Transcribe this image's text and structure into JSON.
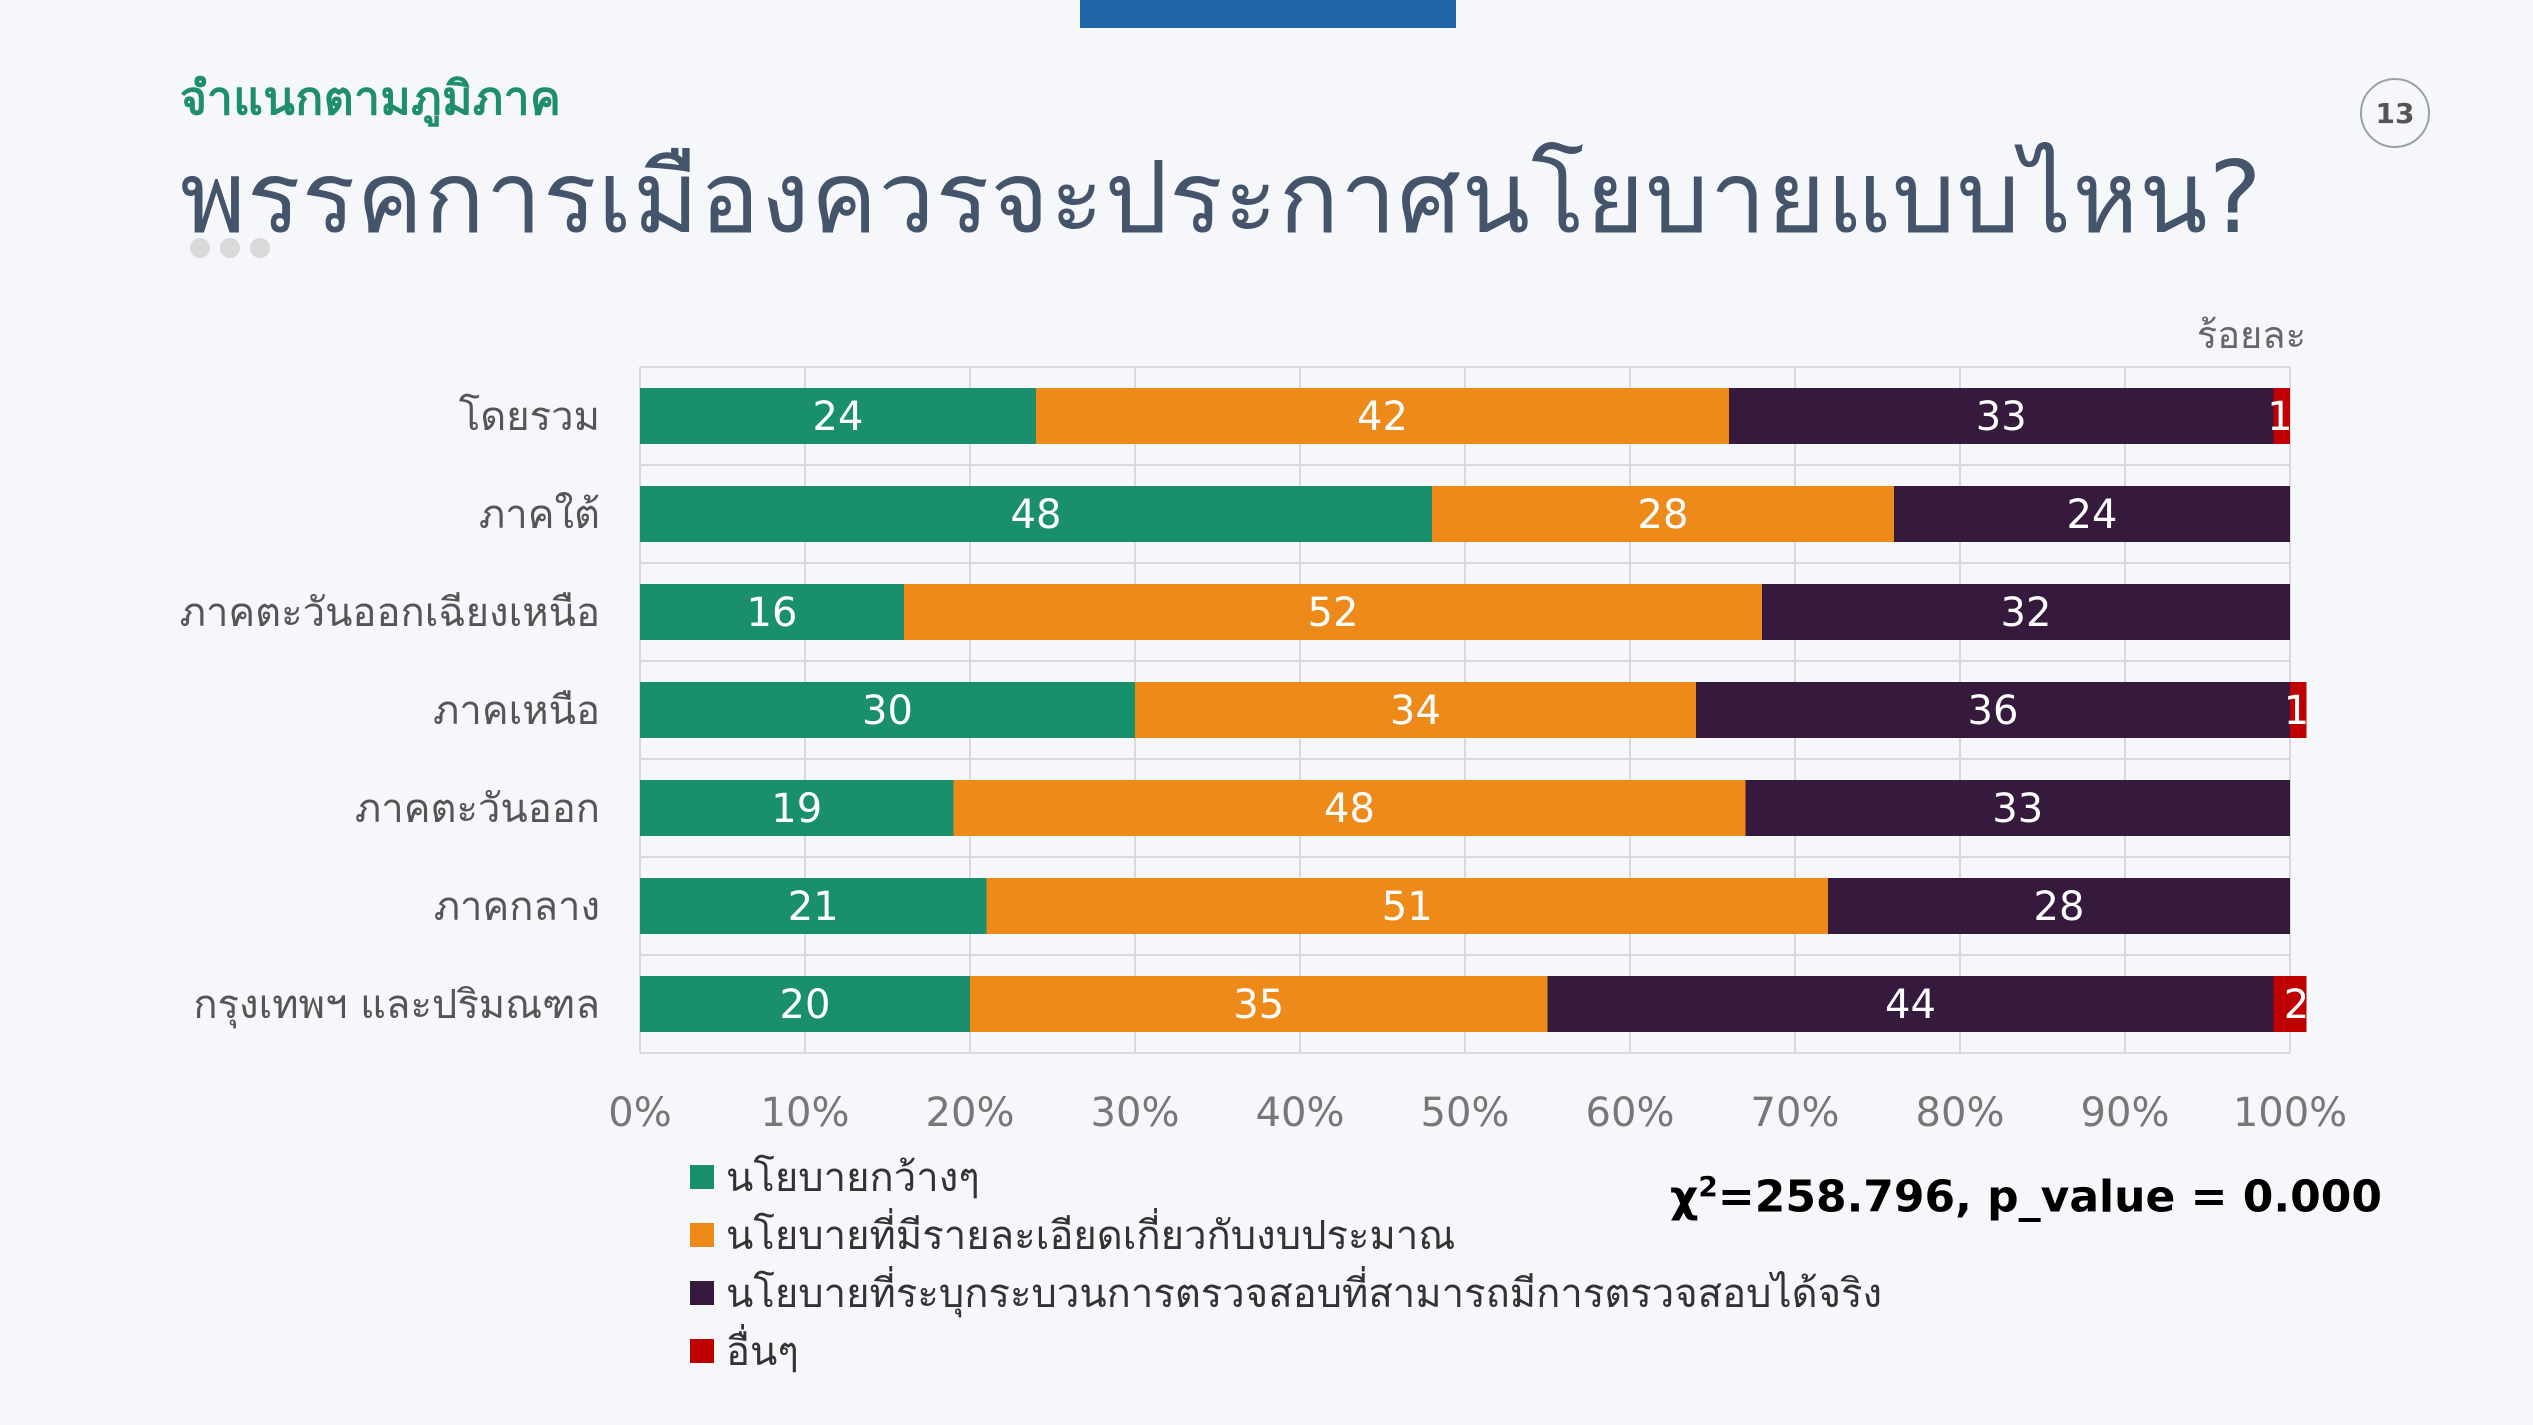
{
  "header": {
    "subtitle": "จำแนกตามภูมิภาค",
    "title": "พรรคการเมืองควรจะประกาศนโยบายแบบไหน?",
    "page_number": "13"
  },
  "stat": {
    "chi_symbol": "χ",
    "chi_exp": "2",
    "text": "=258.796, p_value = 0.000"
  },
  "colors": {
    "series": [
      "#1a8f6b",
      "#ee8a1a",
      "#361a3d",
      "#c00000"
    ],
    "accent": "#1f66a6"
  },
  "chart_data": {
    "type": "bar",
    "orientation": "horizontal",
    "stacked": true,
    "unit_label": "ร้อยละ",
    "categories": [
      "โดยรวม",
      "ภาคใต้",
      "ภาคตะวันออกเฉียงเหนือ",
      "ภาคเหนือ",
      "ภาคตะวันออก",
      "ภาคกลาง",
      "กรุงเทพฯ และปริมณฑล"
    ],
    "series": [
      {
        "name": "นโยบายกว้างๆ",
        "values": [
          24,
          48,
          16,
          30,
          19,
          21,
          20
        ]
      },
      {
        "name": "นโยบายที่มีรายละเอียดเกี่ยวกับงบประมาณ",
        "values": [
          42,
          28,
          52,
          34,
          48,
          51,
          35
        ]
      },
      {
        "name": "นโยบายที่ระบุกระบวนการตรวจสอบที่สามารถมีการตรวจสอบได้จริง",
        "values": [
          33,
          24,
          32,
          36,
          33,
          28,
          44
        ]
      },
      {
        "name": "อื่นๆ",
        "values": [
          1,
          0,
          0,
          1,
          0,
          0,
          2
        ]
      }
    ],
    "x_ticks": [
      "0%",
      "10%",
      "20%",
      "30%",
      "40%",
      "50%",
      "60%",
      "70%",
      "80%",
      "90%",
      "100%"
    ],
    "xlim": [
      0,
      100
    ],
    "grid": true,
    "legend_position": "bottom-left"
  }
}
